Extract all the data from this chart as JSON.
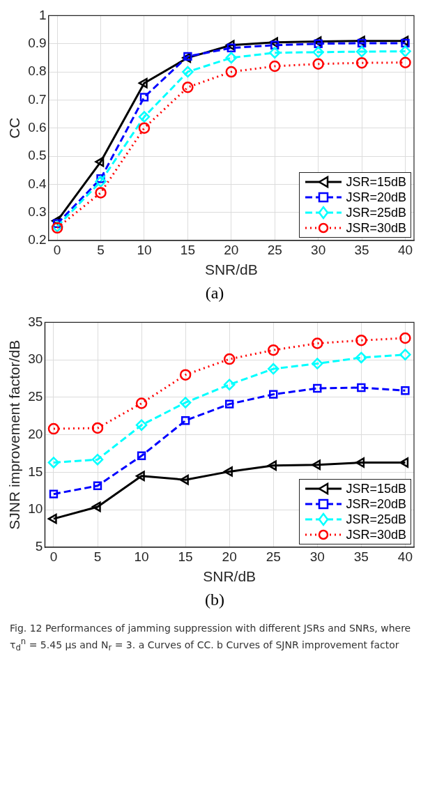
{
  "chart_data": [
    {
      "type": "line",
      "xlabel": "SNR/dB",
      "ylabel": "CC",
      "x": [
        0,
        5,
        10,
        15,
        20,
        25,
        30,
        35,
        40
      ],
      "xlim": [
        -1,
        41
      ],
      "xticks": [
        0,
        5,
        10,
        15,
        20,
        25,
        30,
        35,
        40
      ],
      "ylim": [
        0.2,
        1
      ],
      "yticks": [
        0.2,
        0.3,
        0.4,
        0.5,
        0.6,
        0.7,
        0.8,
        0.9,
        1
      ],
      "grid": true,
      "legend": "bottom right",
      "annotations": [
        "(a)"
      ],
      "series": [
        {
          "name": "JSR=15dB",
          "color": "#000000",
          "marker": "triangle",
          "line_style": "solid",
          "values": [
            0.27,
            0.48,
            0.76,
            0.85,
            0.895,
            0.905,
            0.908,
            0.91,
            0.91
          ]
        },
        {
          "name": "JSR=20dB",
          "color": "#0000ff",
          "marker": "square",
          "line_style": "dashed",
          "values": [
            0.26,
            0.42,
            0.71,
            0.855,
            0.885,
            0.895,
            0.9,
            0.902,
            0.902
          ]
        },
        {
          "name": "JSR=25dB",
          "color": "#00ffff",
          "marker": "diamond",
          "line_style": "dashed",
          "values": [
            0.25,
            0.41,
            0.64,
            0.8,
            0.85,
            0.868,
            0.87,
            0.872,
            0.873
          ]
        },
        {
          "name": "JSR=30dB",
          "color": "#ff0000",
          "marker": "circle",
          "line_style": "dotted",
          "values": [
            0.245,
            0.37,
            0.6,
            0.745,
            0.8,
            0.82,
            0.828,
            0.832,
            0.833
          ]
        }
      ]
    },
    {
      "type": "line",
      "xlabel": "SNR/dB",
      "ylabel": "SJNR improvement factor/dB",
      "x": [
        0,
        5,
        10,
        15,
        20,
        25,
        30,
        35,
        40
      ],
      "xlim": [
        -1,
        41
      ],
      "xticks": [
        0,
        5,
        10,
        15,
        20,
        25,
        30,
        35,
        40
      ],
      "ylim": [
        5,
        35
      ],
      "yticks": [
        5,
        10,
        15,
        20,
        25,
        30,
        35
      ],
      "grid": true,
      "legend": "bottom right",
      "annotations": [
        "(b)",
        "Fig. 12 Performances of jamming suppression with different JSRs and SNRs, where τ$_{d}$$^{n}$ = 5.45 μs and N$_{r}$ = 3. a Curves of CC. b Curves of SJNR improvement factor"
      ],
      "series": [
        {
          "name": "JSR=15dB",
          "color": "#000000",
          "marker": "triangle",
          "line_style": "solid",
          "values": [
            8.8,
            10.4,
            14.5,
            14.0,
            15.1,
            15.9,
            16.0,
            16.3,
            16.3
          ]
        },
        {
          "name": "JSR=20dB",
          "color": "#0000ff",
          "marker": "square",
          "line_style": "dashed",
          "values": [
            12.1,
            13.2,
            17.2,
            21.9,
            24.1,
            25.4,
            26.2,
            26.3,
            25.9
          ]
        },
        {
          "name": "JSR=25dB",
          "color": "#00ffff",
          "marker": "diamond",
          "line_style": "dashed",
          "values": [
            16.3,
            16.7,
            21.3,
            24.3,
            26.7,
            28.8,
            29.5,
            30.3,
            30.7
          ]
        },
        {
          "name": "JSR=30dB",
          "color": "#ff0000",
          "marker": "circle",
          "line_style": "dotted",
          "values": [
            20.8,
            20.9,
            24.2,
            28.0,
            30.1,
            31.3,
            32.2,
            32.6,
            32.9
          ]
        }
      ]
    }
  ]
}
